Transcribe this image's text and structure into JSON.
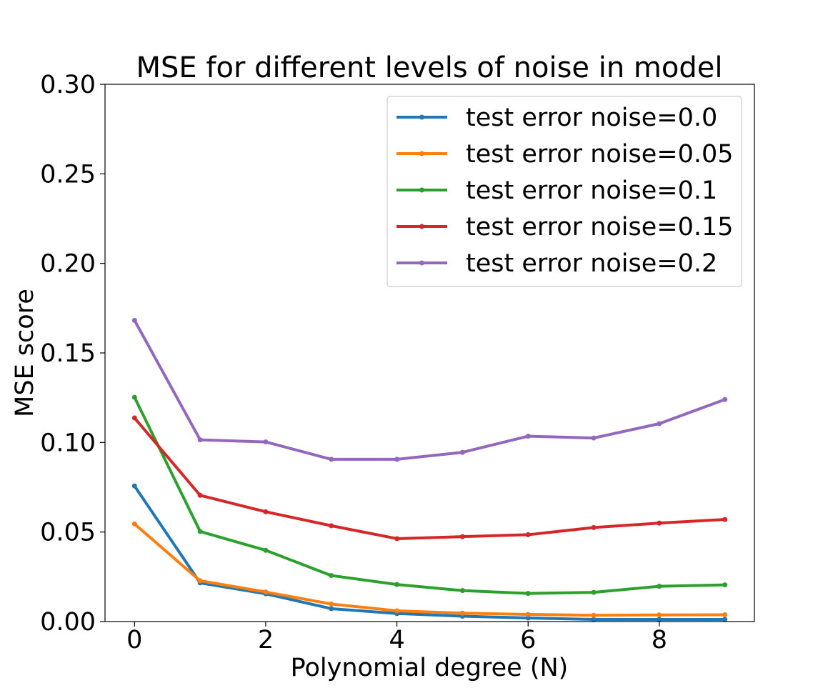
{
  "chart_data": {
    "type": "line",
    "title": "MSE for different levels of noise in model",
    "xlabel": "Polynomial degree (N)",
    "ylabel": "MSE score",
    "xlim": [
      -0.45,
      9.45
    ],
    "ylim": [
      0.0,
      0.3
    ],
    "x_ticks": [
      0,
      2,
      4,
      6,
      8
    ],
    "y_ticks": [
      0.0,
      0.05,
      0.1,
      0.15,
      0.2,
      0.25,
      0.3
    ],
    "x_tick_labels": [
      "0",
      "2",
      "4",
      "6",
      "8"
    ],
    "y_tick_labels": [
      "0.00",
      "0.05",
      "0.10",
      "0.15",
      "0.20",
      "0.25",
      "0.30"
    ],
    "grid": false,
    "legend_position": "top-right",
    "x": [
      0,
      1,
      2,
      3,
      4,
      5,
      6,
      7,
      8,
      9
    ],
    "series": [
      {
        "name": "test error noise=0.0",
        "color": "#1f77b4",
        "values": [
          0.0757,
          0.0216,
          0.0155,
          0.0072,
          0.0045,
          0.003,
          0.002,
          0.0012,
          0.0012,
          0.0012
        ]
      },
      {
        "name": "test error noise=0.05",
        "color": "#ff7f0e",
        "values": [
          0.0545,
          0.0228,
          0.0165,
          0.0098,
          0.006,
          0.0047,
          0.004,
          0.0035,
          0.0037,
          0.0038
        ]
      },
      {
        "name": "test error noise=0.1",
        "color": "#2ca02c",
        "values": [
          0.1252,
          0.0503,
          0.0398,
          0.0257,
          0.0207,
          0.0173,
          0.0157,
          0.0163,
          0.0197,
          0.0205
        ]
      },
      {
        "name": "test error noise=0.15",
        "color": "#d62728",
        "values": [
          0.1137,
          0.0705,
          0.0613,
          0.0535,
          0.0463,
          0.0474,
          0.0485,
          0.0525,
          0.055,
          0.057
        ]
      },
      {
        "name": "test error noise=0.2",
        "color": "#9467bd",
        "values": [
          0.1682,
          0.1015,
          0.1003,
          0.0906,
          0.0906,
          0.0945,
          0.1035,
          0.1025,
          0.1105,
          0.124
        ]
      }
    ]
  }
}
